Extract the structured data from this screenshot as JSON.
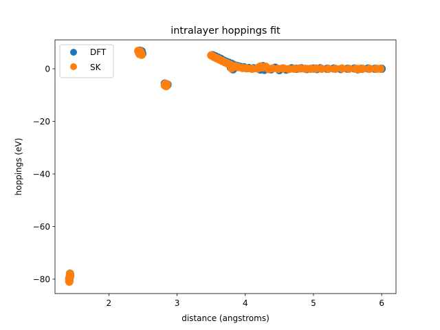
{
  "chart_data": {
    "type": "scatter",
    "title": "intralayer hoppings fit",
    "xlabel": "distance (angstroms)",
    "ylabel": "hoppings (eV)",
    "xlim": [
      1.21,
      6.21
    ],
    "ylim": [
      -85.5,
      11.0
    ],
    "xticks": [
      2,
      3,
      4,
      5,
      6
    ],
    "yticks": [
      -80,
      -60,
      -40,
      -20,
      0
    ],
    "ytick_labels": [
      "−80",
      "−60",
      "−40",
      "−20",
      "0"
    ],
    "grid": false,
    "legend": {
      "placement": "top-left"
    },
    "series": [
      {
        "name": "DFT",
        "color": "#1f77b4",
        "points": [
          [
            1.42,
            -80.6
          ],
          [
            1.42,
            -80.1
          ],
          [
            1.42,
            -79.6
          ],
          [
            1.43,
            -79.0
          ],
          [
            1.43,
            -78.4
          ],
          [
            1.43,
            -77.9
          ],
          [
            2.44,
            6.3
          ],
          [
            2.45,
            6.9
          ],
          [
            2.46,
            5.9
          ],
          [
            2.47,
            6.5
          ],
          [
            2.48,
            6.7
          ],
          [
            2.49,
            5.7
          ],
          [
            2.82,
            -5.6
          ],
          [
            2.83,
            -6.1
          ],
          [
            2.84,
            -5.8
          ],
          [
            2.85,
            -6.4
          ],
          [
            2.86,
            -6.0
          ],
          [
            3.52,
            5.2
          ],
          [
            3.56,
            4.8
          ],
          [
            3.6,
            4.3
          ],
          [
            3.64,
            3.8
          ],
          [
            3.68,
            3.2
          ],
          [
            3.72,
            2.7
          ],
          [
            3.76,
            2.3
          ],
          [
            3.8,
            1.9
          ],
          [
            3.84,
            1.4
          ],
          [
            3.88,
            1.1
          ],
          [
            3.92,
            0.8
          ],
          [
            3.98,
            0.6
          ],
          [
            3.79,
            0.4
          ],
          [
            3.82,
            -0.2
          ],
          [
            4.05,
            0.3
          ],
          [
            4.12,
            0.2
          ],
          [
            4.2,
            0.5
          ],
          [
            4.22,
            -0.3
          ],
          [
            4.26,
            1.0
          ],
          [
            4.28,
            -0.4
          ],
          [
            4.32,
            0.2
          ],
          [
            4.38,
            -0.2
          ],
          [
            4.44,
            0.4
          ],
          [
            4.5,
            -0.5
          ],
          [
            4.55,
            0.1
          ],
          [
            4.6,
            -0.3
          ],
          [
            4.68,
            0.2
          ],
          [
            4.75,
            0.0
          ],
          [
            4.82,
            0.2
          ],
          [
            4.9,
            -0.1
          ],
          [
            5.0,
            0.1
          ],
          [
            5.05,
            -0.1
          ],
          [
            5.1,
            0.2
          ],
          [
            5.2,
            0.0
          ],
          [
            5.3,
            0.1
          ],
          [
            5.4,
            -0.1
          ],
          [
            5.5,
            0.0
          ],
          [
            5.6,
            0.1
          ],
          [
            5.65,
            -0.2
          ],
          [
            5.7,
            0.0
          ],
          [
            5.8,
            0.1
          ],
          [
            5.9,
            0.0
          ],
          [
            6.0,
            0.0
          ]
        ]
      },
      {
        "name": "SK",
        "color": "#ff7f0e",
        "points": [
          [
            1.42,
            -81.0
          ],
          [
            1.42,
            -80.3
          ],
          [
            1.42,
            -79.7
          ],
          [
            1.43,
            -79.2
          ],
          [
            1.43,
            -78.6
          ],
          [
            1.43,
            -78.0
          ],
          [
            2.43,
            6.8
          ],
          [
            2.44,
            6.2
          ],
          [
            2.45,
            5.6
          ],
          [
            2.46,
            6.6
          ],
          [
            2.47,
            6.0
          ],
          [
            2.48,
            5.3
          ],
          [
            2.82,
            -6.3
          ],
          [
            2.83,
            -5.7
          ],
          [
            2.84,
            -6.6
          ],
          [
            2.85,
            -6.0
          ],
          [
            3.5,
            5.1
          ],
          [
            3.54,
            4.5
          ],
          [
            3.58,
            4.0
          ],
          [
            3.62,
            3.5
          ],
          [
            3.66,
            3.0
          ],
          [
            3.7,
            2.5
          ],
          [
            3.74,
            2.0
          ],
          [
            3.78,
            1.6
          ],
          [
            3.8,
            0.2
          ],
          [
            3.86,
            1.0
          ],
          [
            3.9,
            0.6
          ],
          [
            3.96,
            0.3
          ],
          [
            4.02,
            0.2
          ],
          [
            4.1,
            0.0
          ],
          [
            4.18,
            0.1
          ],
          [
            4.22,
            0.9
          ],
          [
            4.25,
            0.5
          ],
          [
            4.3,
            0.8
          ],
          [
            4.34,
            -0.1
          ],
          [
            4.4,
            0.1
          ],
          [
            4.48,
            0.0
          ],
          [
            4.56,
            0.1
          ],
          [
            4.64,
            -0.1
          ],
          [
            4.72,
            0.0
          ],
          [
            4.8,
            0.1
          ],
          [
            4.88,
            0.0
          ],
          [
            4.96,
            0.0
          ],
          [
            5.04,
            0.1
          ],
          [
            5.12,
            0.0
          ],
          [
            5.22,
            0.0
          ],
          [
            5.32,
            0.0
          ],
          [
            5.42,
            0.1
          ],
          [
            5.52,
            0.0
          ],
          [
            5.62,
            0.0
          ],
          [
            5.66,
            -0.1
          ],
          [
            5.72,
            0.0
          ],
          [
            5.82,
            0.0
          ],
          [
            5.92,
            0.0
          ],
          [
            5.98,
            0.0
          ]
        ]
      }
    ]
  }
}
